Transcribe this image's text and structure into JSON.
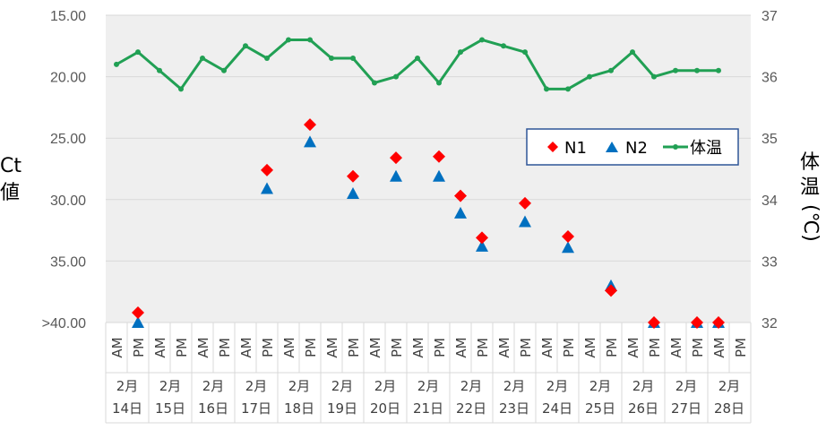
{
  "chart_data": {
    "type": "scatter+line",
    "x_slots": [
      "AM",
      "PM",
      "AM",
      "PM",
      "AM",
      "PM",
      "AM",
      "PM",
      "AM",
      "PM",
      "AM",
      "PM",
      "AM",
      "PM",
      "AM",
      "PM",
      "AM",
      "PM",
      "AM",
      "PM",
      "AM",
      "PM",
      "AM",
      "PM",
      "AM",
      "PM",
      "AM",
      "PM",
      "AM",
      "PM"
    ],
    "date_groups": [
      {
        "month": "2月",
        "day": "14日"
      },
      {
        "month": "2月",
        "day": "15日"
      },
      {
        "month": "2月",
        "day": "16日"
      },
      {
        "month": "2月",
        "day": "17日"
      },
      {
        "month": "2月",
        "day": "18日"
      },
      {
        "month": "2月",
        "day": "19日"
      },
      {
        "month": "2月",
        "day": "20日"
      },
      {
        "month": "2月",
        "day": "21日"
      },
      {
        "month": "2月",
        "day": "22日"
      },
      {
        "month": "2月",
        "day": "23日"
      },
      {
        "month": "2月",
        "day": "24日"
      },
      {
        "month": "2月",
        "day": "25日"
      },
      {
        "month": "2月",
        "day": "26日"
      },
      {
        "month": "2月",
        "day": "27日"
      },
      {
        "month": "2月",
        "day": "28日"
      }
    ],
    "y_left": {
      "label": "Ct値",
      "label_line1": "Ct",
      "label_line2": "値",
      "range": [
        15,
        40
      ],
      "reversed": true,
      "ticks": [
        "15.00",
        "20.00",
        "25.00",
        "30.00",
        "35.00",
        ">40.00"
      ],
      "tick_values": [
        15,
        20,
        25,
        30,
        35,
        40
      ]
    },
    "y_right": {
      "label": "体温(℃)",
      "label_line1": "体",
      "label_line2": "温",
      "label_line3": "(℃)",
      "range": [
        32,
        37
      ],
      "ticks": [
        "37",
        "36",
        "35",
        "34",
        "33",
        "32"
      ],
      "tick_values": [
        37,
        36,
        35,
        34,
        33,
        32
      ]
    },
    "series": [
      {
        "name": "N1",
        "marker": "diamond",
        "color": "#ff0000",
        "values": [
          null,
          39.2,
          null,
          null,
          null,
          null,
          null,
          27.6,
          null,
          23.9,
          null,
          28.1,
          null,
          26.6,
          null,
          26.5,
          29.7,
          33.1,
          null,
          30.3,
          null,
          33.0,
          null,
          37.4,
          null,
          40,
          null,
          40,
          40,
          null
        ]
      },
      {
        "name": "N2",
        "marker": "triangle",
        "color": "#0070c0",
        "values": [
          null,
          40,
          null,
          null,
          null,
          null,
          null,
          29.1,
          null,
          25.3,
          null,
          29.5,
          null,
          28.1,
          null,
          28.1,
          31.1,
          33.8,
          null,
          31.8,
          null,
          33.9,
          null,
          37.0,
          null,
          40,
          null,
          40,
          40,
          null
        ]
      },
      {
        "name": "体温",
        "marker": "dot-line",
        "color": "#21a054",
        "values": [
          36.2,
          36.4,
          36.1,
          35.8,
          36.3,
          36.1,
          36.5,
          36.3,
          36.6,
          36.6,
          36.3,
          36.3,
          35.9,
          36.0,
          36.3,
          35.9,
          36.4,
          36.6,
          36.5,
          36.4,
          35.8,
          35.8,
          36.0,
          36.1,
          36.4,
          36.0,
          36.1,
          36.1,
          36.1,
          null
        ]
      }
    ],
    "legend": {
      "placement": "right-middle",
      "items": [
        "N1",
        "N2",
        "体温"
      ]
    },
    "grid": {
      "horizontal": true,
      "vertical": false
    }
  }
}
